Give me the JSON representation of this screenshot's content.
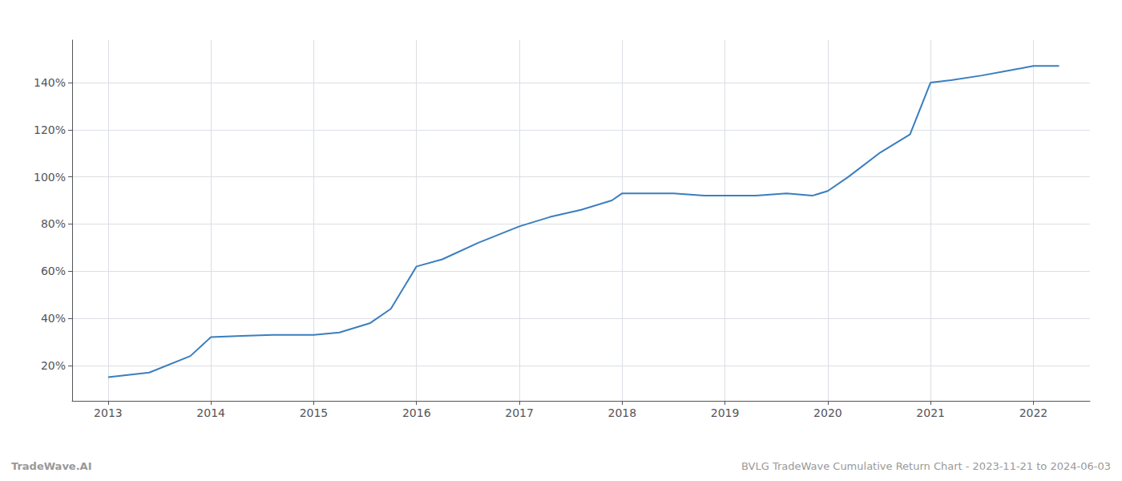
{
  "chart_data": {
    "type": "line",
    "x": [
      2013.0,
      2013.4,
      2013.8,
      2014.0,
      2014.3,
      2014.6,
      2015.0,
      2015.25,
      2015.55,
      2015.75,
      2016.0,
      2016.25,
      2016.6,
      2017.0,
      2017.3,
      2017.6,
      2017.9,
      2018.0,
      2018.3,
      2018.5,
      2018.8,
      2019.0,
      2019.3,
      2019.6,
      2019.85,
      2020.0,
      2020.2,
      2020.5,
      2020.8,
      2021.0,
      2021.2,
      2021.5,
      2021.75,
      2022.0,
      2022.25
    ],
    "values": [
      15,
      17,
      24,
      32,
      32.5,
      33,
      33,
      34,
      38,
      44,
      62,
      65,
      72,
      79,
      83,
      86,
      90,
      93,
      93,
      93,
      92,
      92,
      92,
      93,
      92,
      94,
      100,
      110,
      118,
      140,
      141,
      143,
      145,
      147,
      147
    ],
    "color": "#3a7ebf",
    "xlim": [
      2012.65,
      2022.55
    ],
    "xticks": [
      2013,
      2014,
      2015,
      2016,
      2017,
      2018,
      2019,
      2020,
      2021,
      2022
    ],
    "ylim": [
      5,
      158
    ],
    "yticks": [
      {
        "value": 20,
        "label": "20%"
      },
      {
        "value": 40,
        "label": "40%"
      },
      {
        "value": 60,
        "label": "60%"
      },
      {
        "value": 80,
        "label": "80%"
      },
      {
        "value": 100,
        "label": "100%"
      },
      {
        "value": 120,
        "label": "120%"
      },
      {
        "value": 140,
        "label": "140%"
      }
    ],
    "grid": true,
    "annotations": [
      "TradeWave.AI",
      "BVLG TradeWave Cumulative Return Chart - 2023-11-21 to 2024-06-03"
    ]
  }
}
